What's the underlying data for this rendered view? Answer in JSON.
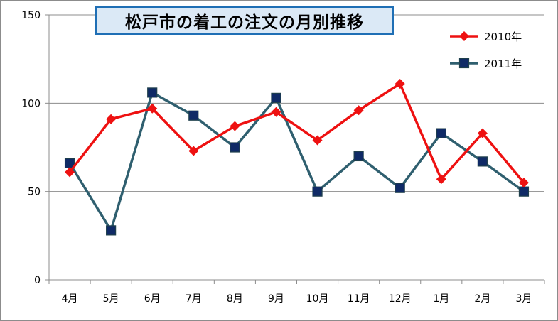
{
  "chart_data": {
    "type": "line",
    "title": "松戸市の着工の注文の月別推移",
    "xlabel": "",
    "ylabel": "",
    "categories": [
      "4月",
      "5月",
      "6月",
      "7月",
      "8月",
      "9月",
      "10月",
      "11月",
      "12月",
      "1月",
      "2月",
      "3月"
    ],
    "ylim": [
      0,
      150
    ],
    "yticks": [
      0,
      50,
      100,
      150
    ],
    "grid": true,
    "legend_position": "top-right",
    "series": [
      {
        "name": "2010年",
        "color": "#ee1111",
        "marker": "diamond",
        "values": [
          61,
          91,
          97,
          73,
          87,
          95,
          79,
          96,
          111,
          57,
          83,
          55
        ]
      },
      {
        "name": "2011年",
        "color": "#2f5f6f",
        "marker_fill": "#0f2a66",
        "marker": "square",
        "values": [
          66,
          28,
          106,
          93,
          75,
          103,
          50,
          70,
          52,
          83,
          67,
          50
        ]
      }
    ]
  }
}
